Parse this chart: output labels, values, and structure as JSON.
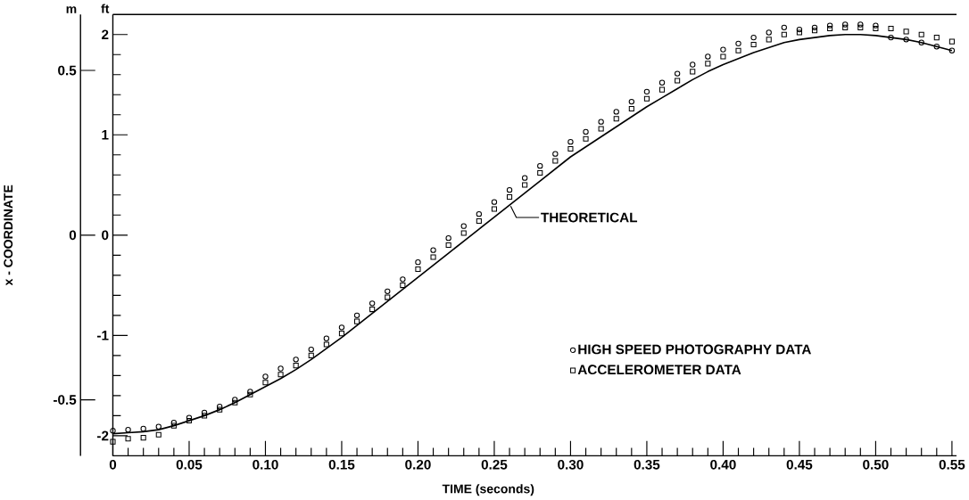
{
  "chart_data": {
    "type": "line",
    "xlabel": "TIME (seconds)",
    "y2label": "x - COORDINATE",
    "annotations": [
      "m",
      "ft"
    ],
    "x": [
      0,
      0.01,
      0.02,
      0.03,
      0.04,
      0.05,
      0.06,
      0.07,
      0.08,
      0.09,
      0.1,
      0.11,
      0.12,
      0.13,
      0.14,
      0.15,
      0.16,
      0.17,
      0.18,
      0.19,
      0.2,
      0.21,
      0.22,
      0.23,
      0.24,
      0.25,
      0.26,
      0.27,
      0.28,
      0.29,
      0.3,
      0.31,
      0.32,
      0.33,
      0.34,
      0.35,
      0.36,
      0.37,
      0.38,
      0.39,
      0.4,
      0.41,
      0.42,
      0.43,
      0.44,
      0.45,
      0.46,
      0.47,
      0.48,
      0.49,
      0.5,
      0.51,
      0.52,
      0.53,
      0.54,
      0.55
    ],
    "series": [
      {
        "name": "THEORETICAL",
        "marker": "none",
        "line_style": "solid",
        "color": "#000000",
        "values": [
          -1.98,
          -1.97,
          -1.96,
          -1.94,
          -1.9,
          -1.85,
          -1.8,
          -1.74,
          -1.67,
          -1.59,
          -1.51,
          -1.43,
          -1.34,
          -1.24,
          -1.13,
          -1.02,
          -0.9,
          -0.78,
          -0.66,
          -0.54,
          -0.42,
          -0.3,
          -0.18,
          -0.06,
          0.06,
          0.18,
          0.3,
          0.42,
          0.54,
          0.66,
          0.78,
          0.88,
          0.98,
          1.08,
          1.18,
          1.28,
          1.37,
          1.46,
          1.55,
          1.63,
          1.7,
          1.76,
          1.82,
          1.87,
          1.92,
          1.95,
          1.97,
          1.99,
          2.0,
          2.0,
          1.99,
          1.97,
          1.95,
          1.92,
          1.88,
          1.84
        ]
      },
      {
        "name": "HIGH SPEED PHOTOGRAPHY DATA",
        "type": "scatter",
        "marker": "circle",
        "color": "#000000",
        "values": [
          -1.95,
          -1.94,
          -1.93,
          -1.91,
          -1.87,
          -1.82,
          -1.77,
          -1.71,
          -1.64,
          -1.56,
          -1.41,
          -1.33,
          -1.24,
          -1.14,
          -1.03,
          -0.92,
          -0.8,
          -0.68,
          -0.56,
          -0.44,
          -0.27,
          -0.15,
          -0.03,
          0.09,
          0.21,
          0.33,
          0.45,
          0.57,
          0.69,
          0.81,
          0.93,
          1.03,
          1.13,
          1.23,
          1.33,
          1.43,
          1.52,
          1.61,
          1.7,
          1.78,
          1.85,
          1.91,
          1.97,
          2.02,
          2.07,
          2.05,
          2.07,
          2.09,
          2.1,
          2.1,
          2.09,
          1.97,
          1.95,
          1.92,
          1.88,
          1.84
        ]
      },
      {
        "name": "ACCELEROMETER DATA",
        "type": "scatter",
        "marker": "square",
        "color": "#000000",
        "values": [
          -2.06,
          -2.03,
          -2.02,
          -1.99,
          -1.9,
          -1.85,
          -1.8,
          -1.74,
          -1.67,
          -1.59,
          -1.47,
          -1.39,
          -1.3,
          -1.2,
          -1.09,
          -0.98,
          -0.86,
          -0.74,
          -0.62,
          -0.5,
          -0.34,
          -0.22,
          -0.1,
          0.02,
          0.14,
          0.26,
          0.38,
          0.5,
          0.62,
          0.74,
          0.86,
          0.96,
          1.06,
          1.16,
          1.26,
          1.36,
          1.45,
          1.54,
          1.63,
          1.71,
          1.78,
          1.84,
          1.9,
          1.95,
          2.0,
          2.02,
          2.04,
          2.06,
          2.07,
          2.07,
          2.06,
          2.06,
          2.03,
          2.0,
          1.97,
          1.93
        ]
      }
    ],
    "xlim": [
      0,
      0.553
    ],
    "ylim": [
      -2.2,
      2.2
    ],
    "y2lim": [
      -0.67,
      0.67
    ],
    "xticks": [
      0,
      {
        "value": 0.01,
        "label": null
      },
      {
        "value": 0.02,
        "label": null
      },
      {
        "value": 0.03,
        "label": null
      },
      {
        "value": 0.04,
        "label": null
      },
      0.05,
      {
        "value": 0.06,
        "label": null
      },
      {
        "value": 0.07,
        "label": null
      },
      {
        "value": 0.08,
        "label": null
      },
      {
        "value": 0.09,
        "label": null
      },
      {
        "value": 0.1,
        "label": "0.10"
      },
      {
        "value": 0.11,
        "label": null
      },
      {
        "value": 0.12,
        "label": null
      },
      {
        "value": 0.13,
        "label": null
      },
      {
        "value": 0.14,
        "label": null
      },
      0.15,
      {
        "value": 0.16,
        "label": null
      },
      {
        "value": 0.17,
        "label": null
      },
      {
        "value": 0.18,
        "label": null
      },
      {
        "value": 0.19,
        "label": null
      },
      {
        "value": 0.2,
        "label": "0.20"
      },
      {
        "value": 0.21,
        "label": null
      },
      {
        "value": 0.22,
        "label": null
      },
      {
        "value": 0.23,
        "label": null
      },
      {
        "value": 0.24,
        "label": null
      },
      0.25,
      {
        "value": 0.26,
        "label": null
      },
      {
        "value": 0.27,
        "label": null
      },
      {
        "value": 0.28,
        "label": null
      },
      {
        "value": 0.29,
        "label": null
      },
      {
        "value": 0.3,
        "label": "0.30"
      },
      {
        "value": 0.31,
        "label": null
      },
      {
        "value": 0.32,
        "label": null
      },
      {
        "value": 0.33,
        "label": null
      },
      {
        "value": 0.34,
        "label": null
      },
      0.35,
      {
        "value": 0.36,
        "label": null
      },
      {
        "value": 0.37,
        "label": null
      },
      {
        "value": 0.38,
        "label": null
      },
      {
        "value": 0.39,
        "label": null
      },
      {
        "value": 0.4,
        "label": "0.40"
      },
      {
        "value": 0.41,
        "label": null
      },
      {
        "value": 0.42,
        "label": null
      },
      {
        "value": 0.43,
        "label": null
      },
      {
        "value": 0.44,
        "label": null
      },
      0.45,
      {
        "value": 0.46,
        "label": null
      },
      {
        "value": 0.47,
        "label": null
      },
      {
        "value": 0.48,
        "label": null
      },
      {
        "value": 0.49,
        "label": null
      },
      {
        "value": 0.5,
        "label": "0.50"
      },
      {
        "value": 0.51,
        "label": null
      },
      {
        "value": 0.52,
        "label": null
      },
      {
        "value": 0.53,
        "label": null
      },
      {
        "value": 0.54,
        "label": null
      },
      0.55
    ],
    "yticks": [
      -2,
      {
        "value": -1.8,
        "label": null
      },
      {
        "value": -1.6,
        "label": null
      },
      {
        "value": -1.4,
        "label": null
      },
      {
        "value": -1.2,
        "label": null
      },
      -1,
      {
        "value": -0.8,
        "label": null
      },
      {
        "value": -0.6,
        "label": null
      },
      {
        "value": -0.4,
        "label": null
      },
      {
        "value": -0.2,
        "label": null
      },
      0,
      {
        "value": 0.2,
        "label": null
      },
      {
        "value": 0.4,
        "label": null
      },
      {
        "value": 0.6,
        "label": null
      },
      {
        "value": 0.8,
        "label": null
      },
      1,
      {
        "value": 1.2,
        "label": null
      },
      {
        "value": 1.4,
        "label": null
      },
      {
        "value": 1.6,
        "label": null
      },
      {
        "value": 1.8,
        "label": null
      },
      2
    ],
    "y2ticks": [
      -0.5,
      0,
      0.5
    ],
    "legend": "bottom right",
    "grid": false
  }
}
